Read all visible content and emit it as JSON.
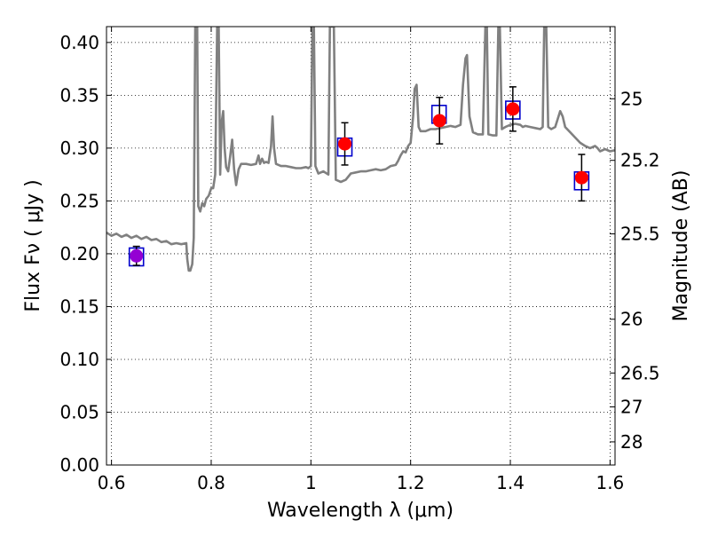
{
  "chart_data": {
    "type": "scatter",
    "xlabel": "Wavelength  λ (μm)",
    "ylabel": "Flux  Fν  ( μJy )",
    "y2label": "Magnitude (AB)",
    "xlim": [
      0.59,
      1.61
    ],
    "ylim": [
      0.0,
      0.415
    ],
    "grid": true,
    "x_ticks": [
      {
        "value": 0.6,
        "label": "0.6"
      },
      {
        "value": 0.8,
        "label": "0.8"
      },
      {
        "value": 1.0,
        "label": "1"
      },
      {
        "value": 1.2,
        "label": "1.2"
      },
      {
        "value": 1.4,
        "label": "1.4"
      },
      {
        "value": 1.6,
        "label": "1.6"
      }
    ],
    "y_ticks": [
      {
        "value": 0.0,
        "label": "0.00"
      },
      {
        "value": 0.05,
        "label": "0.05"
      },
      {
        "value": 0.1,
        "label": "0.10"
      },
      {
        "value": 0.15,
        "label": "0.15"
      },
      {
        "value": 0.2,
        "label": "0.20"
      },
      {
        "value": 0.25,
        "label": "0.25"
      },
      {
        "value": 0.3,
        "label": "0.30"
      },
      {
        "value": 0.35,
        "label": "0.35"
      },
      {
        "value": 0.4,
        "label": "0.40"
      }
    ],
    "y2_ticks": [
      {
        "flux": 0.3467,
        "label": "25"
      },
      {
        "flux": 0.2884,
        "label": "25.2"
      },
      {
        "flux": 0.2188,
        "label": "25.5"
      },
      {
        "flux": 0.138,
        "label": "26"
      },
      {
        "flux": 0.0871,
        "label": "26.5"
      },
      {
        "flux": 0.055,
        "label": "27"
      },
      {
        "flux": 0.0219,
        "label": "28"
      }
    ],
    "model_spectrum": {
      "color": "#808080",
      "points": [
        [
          0.59,
          0.22
        ],
        [
          0.6,
          0.217
        ],
        [
          0.61,
          0.219
        ],
        [
          0.62,
          0.216
        ],
        [
          0.63,
          0.218
        ],
        [
          0.64,
          0.215
        ],
        [
          0.65,
          0.217
        ],
        [
          0.66,
          0.214
        ],
        [
          0.67,
          0.216
        ],
        [
          0.68,
          0.213
        ],
        [
          0.69,
          0.214
        ],
        [
          0.7,
          0.211
        ],
        [
          0.71,
          0.212
        ],
        [
          0.72,
          0.209
        ],
        [
          0.73,
          0.21
        ],
        [
          0.74,
          0.209
        ],
        [
          0.75,
          0.21
        ],
        [
          0.752,
          0.195
        ],
        [
          0.755,
          0.184
        ],
        [
          0.758,
          0.184
        ],
        [
          0.762,
          0.19
        ],
        [
          0.765,
          0.215
        ],
        [
          0.768,
          0.415
        ],
        [
          0.772,
          0.415
        ],
        [
          0.774,
          0.245
        ],
        [
          0.778,
          0.24
        ],
        [
          0.782,
          0.248
        ],
        [
          0.786,
          0.245
        ],
        [
          0.79,
          0.252
        ],
        [
          0.795,
          0.255
        ],
        [
          0.8,
          0.262
        ],
        [
          0.804,
          0.262
        ],
        [
          0.808,
          0.275
        ],
        [
          0.812,
          0.415
        ],
        [
          0.815,
          0.415
        ],
        [
          0.818,
          0.275
        ],
        [
          0.821,
          0.325
        ],
        [
          0.824,
          0.335
        ],
        [
          0.827,
          0.3
        ],
        [
          0.83,
          0.282
        ],
        [
          0.834,
          0.278
        ],
        [
          0.838,
          0.292
        ],
        [
          0.842,
          0.308
        ],
        [
          0.846,
          0.28
        ],
        [
          0.85,
          0.265
        ],
        [
          0.855,
          0.28
        ],
        [
          0.86,
          0.285
        ],
        [
          0.87,
          0.285
        ],
        [
          0.88,
          0.284
        ],
        [
          0.89,
          0.285
        ],
        [
          0.895,
          0.293
        ],
        [
          0.898,
          0.285
        ],
        [
          0.902,
          0.29
        ],
        [
          0.906,
          0.286
        ],
        [
          0.91,
          0.287
        ],
        [
          0.915,
          0.286
        ],
        [
          0.92,
          0.302
        ],
        [
          0.923,
          0.33
        ],
        [
          0.926,
          0.3
        ],
        [
          0.93,
          0.285
        ],
        [
          0.94,
          0.283
        ],
        [
          0.95,
          0.283
        ],
        [
          0.96,
          0.282
        ],
        [
          0.97,
          0.281
        ],
        [
          0.98,
          0.281
        ],
        [
          0.99,
          0.282
        ],
        [
          0.995,
          0.281
        ],
        [
          1.0,
          0.283
        ],
        [
          1.003,
          0.415
        ],
        [
          1.006,
          0.415
        ],
        [
          1.009,
          0.283
        ],
        [
          1.015,
          0.276
        ],
        [
          1.025,
          0.278
        ],
        [
          1.035,
          0.275
        ],
        [
          1.038,
          0.415
        ],
        [
          1.041,
          0.415
        ],
        [
          1.046,
          0.415
        ],
        [
          1.05,
          0.27
        ],
        [
          1.06,
          0.268
        ],
        [
          1.07,
          0.27
        ],
        [
          1.08,
          0.276
        ],
        [
          1.09,
          0.277
        ],
        [
          1.1,
          0.278
        ],
        [
          1.11,
          0.278
        ],
        [
          1.12,
          0.279
        ],
        [
          1.13,
          0.28
        ],
        [
          1.14,
          0.279
        ],
        [
          1.15,
          0.28
        ],
        [
          1.16,
          0.283
        ],
        [
          1.17,
          0.284
        ],
        [
          1.175,
          0.288
        ],
        [
          1.18,
          0.293
        ],
        [
          1.185,
          0.297
        ],
        [
          1.19,
          0.296
        ],
        [
          1.195,
          0.302
        ],
        [
          1.2,
          0.305
        ],
        [
          1.205,
          0.33
        ],
        [
          1.208,
          0.356
        ],
        [
          1.212,
          0.36
        ],
        [
          1.216,
          0.32
        ],
        [
          1.22,
          0.316
        ],
        [
          1.23,
          0.316
        ],
        [
          1.24,
          0.318
        ],
        [
          1.25,
          0.318
        ],
        [
          1.26,
          0.319
        ],
        [
          1.27,
          0.32
        ],
        [
          1.28,
          0.321
        ],
        [
          1.29,
          0.32
        ],
        [
          1.3,
          0.322
        ],
        [
          1.305,
          0.36
        ],
        [
          1.31,
          0.385
        ],
        [
          1.313,
          0.388
        ],
        [
          1.318,
          0.33
        ],
        [
          1.325,
          0.315
        ],
        [
          1.335,
          0.313
        ],
        [
          1.345,
          0.313
        ],
        [
          1.35,
          0.415
        ],
        [
          1.353,
          0.415
        ],
        [
          1.356,
          0.313
        ],
        [
          1.365,
          0.312
        ],
        [
          1.372,
          0.312
        ],
        [
          1.376,
          0.415
        ],
        [
          1.379,
          0.415
        ],
        [
          1.383,
          0.318
        ],
        [
          1.39,
          0.32
        ],
        [
          1.4,
          0.322
        ],
        [
          1.41,
          0.323
        ],
        [
          1.42,
          0.322
        ],
        [
          1.425,
          0.32
        ],
        [
          1.43,
          0.321
        ],
        [
          1.44,
          0.32
        ],
        [
          1.45,
          0.319
        ],
        [
          1.46,
          0.318
        ],
        [
          1.465,
          0.32
        ],
        [
          1.468,
          0.415
        ],
        [
          1.472,
          0.415
        ],
        [
          1.476,
          0.32
        ],
        [
          1.482,
          0.318
        ],
        [
          1.49,
          0.32
        ],
        [
          1.5,
          0.335
        ],
        [
          1.505,
          0.33
        ],
        [
          1.51,
          0.32
        ],
        [
          1.52,
          0.315
        ],
        [
          1.53,
          0.31
        ],
        [
          1.54,
          0.305
        ],
        [
          1.55,
          0.302
        ],
        [
          1.56,
          0.3
        ],
        [
          1.57,
          0.302
        ],
        [
          1.575,
          0.3
        ],
        [
          1.58,
          0.297
        ],
        [
          1.59,
          0.299
        ],
        [
          1.6,
          0.297
        ],
        [
          1.61,
          0.298
        ]
      ]
    },
    "photometry_boxes": [
      {
        "x": 0.65,
        "y": 0.197,
        "color": "#0000cc"
      },
      {
        "x": 1.068,
        "y": 0.301,
        "color": "#0000cc"
      },
      {
        "x": 1.257,
        "y": 0.332,
        "color": "#0000cc"
      },
      {
        "x": 1.405,
        "y": 0.336,
        "color": "#0000cc"
      },
      {
        "x": 1.543,
        "y": 0.269,
        "color": "#0000cc"
      }
    ],
    "observations": [
      {
        "x": 0.65,
        "y": 0.198,
        "err": 0.009,
        "color": "#9400d3"
      },
      {
        "x": 1.068,
        "y": 0.304,
        "err": 0.02,
        "color": "#ff0000"
      },
      {
        "x": 1.258,
        "y": 0.326,
        "err": 0.022,
        "color": "#ff0000"
      },
      {
        "x": 1.405,
        "y": 0.337,
        "err": 0.021,
        "color": "#ff0000"
      },
      {
        "x": 1.543,
        "y": 0.272,
        "err": 0.022,
        "color": "#ff0000"
      }
    ]
  }
}
